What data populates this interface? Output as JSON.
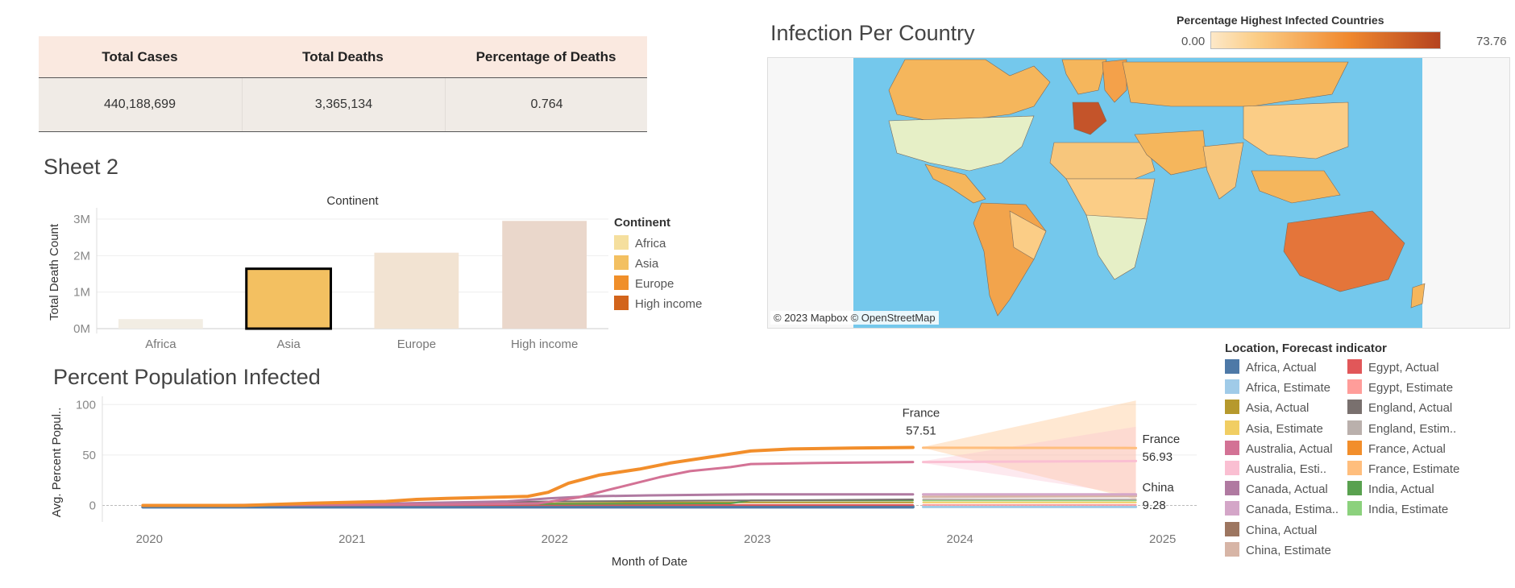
{
  "kpi": {
    "headers": [
      "Total Cases",
      "Total Deaths",
      "Percentage of Deaths"
    ],
    "values": [
      "440,188,699",
      "3,365,134",
      "0.764"
    ]
  },
  "sheet2": {
    "title": "Sheet 2",
    "legend_title": "Continent",
    "legend": [
      {
        "label": "Africa",
        "color": "#f5df9e"
      },
      {
        "label": "Asia",
        "color": "#f3c061"
      },
      {
        "label": "Europe",
        "color": "#f08f2a"
      },
      {
        "label": "High income",
        "color": "#d2641c"
      }
    ]
  },
  "map": {
    "title": "Infection Per Country",
    "color_legend_title": "Percentage Highest Infected Countries",
    "color_min": "0.00",
    "color_max": "73.76",
    "attribution": "© 2023 Mapbox © OpenStreetMap",
    "colors": {
      "ocean": "#74c8ec",
      "land_nodata": "#e6efc6",
      "low": "#fbcd86",
      "high": "#b5431f"
    }
  },
  "infected": {
    "title": "Percent Population Infected",
    "legend_title": "Location, Forecast indicator",
    "legend": [
      {
        "label": "Africa, Actual",
        "color": "#4e79a7"
      },
      {
        "label": "Africa, Estimate",
        "color": "#a0cbe8"
      },
      {
        "label": "Asia, Actual",
        "color": "#b6992d"
      },
      {
        "label": "Asia, Estimate",
        "color": "#f1ce63"
      },
      {
        "label": "Australia, Actual",
        "color": "#d37295"
      },
      {
        "label": "Australia, Esti..",
        "color": "#fabfd2"
      },
      {
        "label": "Canada, Actual",
        "color": "#b07aa1"
      },
      {
        "label": "Canada, Estima..",
        "color": "#d4a6c8"
      },
      {
        "label": "China, Actual",
        "color": "#9d7660"
      },
      {
        "label": "China, Estimate",
        "color": "#d7b5a6"
      },
      {
        "label": "Egypt, Actual",
        "color": "#e15759"
      },
      {
        "label": "Egypt, Estimate",
        "color": "#ff9d9a"
      },
      {
        "label": "England, Actual",
        "color": "#79706e"
      },
      {
        "label": "England, Estim..",
        "color": "#bab0ac"
      },
      {
        "label": "France, Actual",
        "color": "#f28e2b"
      },
      {
        "label": "France, Estimate",
        "color": "#ffbe7d"
      },
      {
        "label": "India, Actual",
        "color": "#59a14f"
      },
      {
        "label": "India, Estimate",
        "color": "#8cd17d"
      }
    ]
  },
  "chart_data": [
    {
      "type": "bar",
      "title": "Continent",
      "xlabel": "",
      "ylabel": "Total Death Count",
      "categories": [
        "Africa",
        "Asia",
        "Europe",
        "High income"
      ],
      "values": [
        260000,
        1640000,
        2080000,
        2950000
      ],
      "colors": [
        "#f2ede3",
        "#f3c061",
        "#f2e3d2",
        "#ead7cb"
      ],
      "highlighted": "Asia",
      "ylim": [
        0,
        3000000
      ],
      "yticks": [
        0,
        1000000,
        2000000,
        3000000
      ],
      "ytick_labels": [
        "0M",
        "1M",
        "2M",
        "3M"
      ],
      "grid": true
    },
    {
      "type": "line",
      "title": "",
      "xlabel": "Month of Date",
      "ylabel": "Avg. Percent Popul..",
      "x_ticks": [
        2020,
        2021,
        2022,
        2023,
        2024,
        2025
      ],
      "ylim": [
        -10,
        105
      ],
      "yticks": [
        0,
        50,
        100
      ],
      "grid": true,
      "series": [
        {
          "name": "France, Actual",
          "color": "#f28e2b",
          "width": 4,
          "points": [
            [
              2020.0,
              0
            ],
            [
              2020.5,
              0
            ],
            [
              2020.8,
              2
            ],
            [
              2021.0,
              3
            ],
            [
              2021.2,
              4
            ],
            [
              2021.35,
              6
            ],
            [
              2021.5,
              7
            ],
            [
              2021.7,
              8
            ],
            [
              2021.9,
              9
            ],
            [
              2022.0,
              13
            ],
            [
              2022.1,
              22
            ],
            [
              2022.25,
              30
            ],
            [
              2022.45,
              36
            ],
            [
              2022.6,
              42
            ],
            [
              2022.8,
              48
            ],
            [
              2023.0,
              54
            ],
            [
              2023.2,
              56
            ],
            [
              2023.5,
              56.9
            ],
            [
              2023.8,
              57.51
            ]
          ]
        },
        {
          "name": "Australia, Actual",
          "color": "#d37295",
          "width": 3,
          "points": [
            [
              2020.0,
              0
            ],
            [
              2021.5,
              1
            ],
            [
              2021.95,
              2
            ],
            [
              2022.15,
              8
            ],
            [
              2022.35,
              18
            ],
            [
              2022.55,
              28
            ],
            [
              2022.7,
              34
            ],
            [
              2022.9,
              38
            ],
            [
              2023.0,
              41
            ],
            [
              2023.3,
              42
            ],
            [
              2023.8,
              43
            ]
          ]
        },
        {
          "name": "Canada, Actual",
          "color": "#b07aa1",
          "width": 3,
          "points": [
            [
              2020.0,
              0
            ],
            [
              2021.0,
              1
            ],
            [
              2021.8,
              4
            ],
            [
              2022.0,
              7
            ],
            [
              2022.2,
              9
            ],
            [
              2022.5,
              10
            ],
            [
              2023.0,
              11
            ],
            [
              2023.8,
              11
            ]
          ]
        },
        {
          "name": "England, Actual",
          "color": "#79706e",
          "width": 2,
          "points": [
            [
              2020.0,
              0
            ],
            [
              2021.5,
              2
            ],
            [
              2022.0,
              4
            ],
            [
              2023.0,
              5
            ],
            [
              2023.8,
              6
            ]
          ]
        },
        {
          "name": "India, Actual",
          "color": "#59a14f",
          "width": 2,
          "points": [
            [
              2020.0,
              0
            ],
            [
              2021.5,
              1
            ],
            [
              2022.9,
              2
            ],
            [
              2023.0,
              5
            ],
            [
              2023.8,
              5
            ]
          ]
        },
        {
          "name": "Asia, Actual",
          "color": "#b6992d",
          "width": 2,
          "points": [
            [
              2020.0,
              0
            ],
            [
              2021.5,
              1
            ],
            [
              2022.5,
              3
            ],
            [
              2023.8,
              3
            ]
          ]
        },
        {
          "name": "Egypt, Actual",
          "color": "#e15759",
          "width": 2,
          "points": [
            [
              2020.0,
              0
            ],
            [
              2022.0,
              0.5
            ],
            [
              2023.8,
              0.5
            ]
          ]
        },
        {
          "name": "China, Actual",
          "color": "#9d7660",
          "width": 2,
          "points": [
            [
              2020.0,
              0
            ],
            [
              2022.0,
              0.2
            ],
            [
              2023.8,
              0.3
            ]
          ]
        },
        {
          "name": "Africa, Actual",
          "color": "#4e79a7",
          "width": 4,
          "points": [
            [
              2020.0,
              -1.5
            ],
            [
              2023.8,
              -1.5
            ]
          ]
        },
        {
          "name": "France, Estimate",
          "color": "#ffbe7d",
          "width": 3,
          "points": [
            [
              2023.85,
              57.2
            ],
            [
              2024.9,
              56.93
            ]
          ]
        },
        {
          "name": "Australia, Esti..",
          "color": "#fabfd2",
          "width": 3,
          "points": [
            [
              2023.85,
              43
            ],
            [
              2024.9,
              44
            ]
          ]
        },
        {
          "name": "Canada, Estima..",
          "color": "#d4a6c8",
          "width": 3,
          "points": [
            [
              2023.85,
              11
            ],
            [
              2024.9,
              11
            ]
          ]
        },
        {
          "name": "China, Estimate",
          "color": "#d7b5a6",
          "width": 3,
          "points": [
            [
              2023.85,
              8.5
            ],
            [
              2024.9,
              9.28
            ]
          ]
        },
        {
          "name": "England, Estim..",
          "color": "#bab0ac",
          "width": 2,
          "points": [
            [
              2023.85,
              6
            ],
            [
              2024.9,
              6
            ]
          ]
        },
        {
          "name": "India, Estimate",
          "color": "#8cd17d",
          "width": 2,
          "points": [
            [
              2023.85,
              5
            ],
            [
              2024.9,
              5
            ]
          ]
        },
        {
          "name": "Asia, Estimate",
          "color": "#f1ce63",
          "width": 2,
          "points": [
            [
              2023.85,
              3
            ],
            [
              2024.9,
              3
            ]
          ]
        },
        {
          "name": "Egypt, Estimate",
          "color": "#ff9d9a",
          "width": 2,
          "points": [
            [
              2023.85,
              0.5
            ],
            [
              2024.9,
              0.5
            ]
          ]
        },
        {
          "name": "Africa, Estimate",
          "color": "#a0cbe8",
          "width": 3,
          "points": [
            [
              2023.85,
              -1.5
            ],
            [
              2024.9,
              -1.5
            ]
          ]
        }
      ],
      "bands": [
        {
          "color": "#ffbe7d",
          "opacity": 0.35,
          "x": [
            2023.85,
            2024.9
          ],
          "upper": [
            58,
            104
          ],
          "lower": [
            57,
            6
          ]
        },
        {
          "color": "#fabfd2",
          "opacity": 0.35,
          "x": [
            2023.85,
            2024.9
          ],
          "upper": [
            44,
            78
          ],
          "lower": [
            42,
            10
          ]
        }
      ],
      "annotations": [
        {
          "x": 2023.8,
          "y": 57.51,
          "label": "France",
          "value": "57.51",
          "pos": "above"
        },
        {
          "x": 2024.9,
          "y": 56.93,
          "label": "France",
          "value": "56.93",
          "pos": "right"
        },
        {
          "x": 2024.9,
          "y": 9.28,
          "label": "China",
          "value": "9.28",
          "pos": "right"
        }
      ]
    }
  ]
}
